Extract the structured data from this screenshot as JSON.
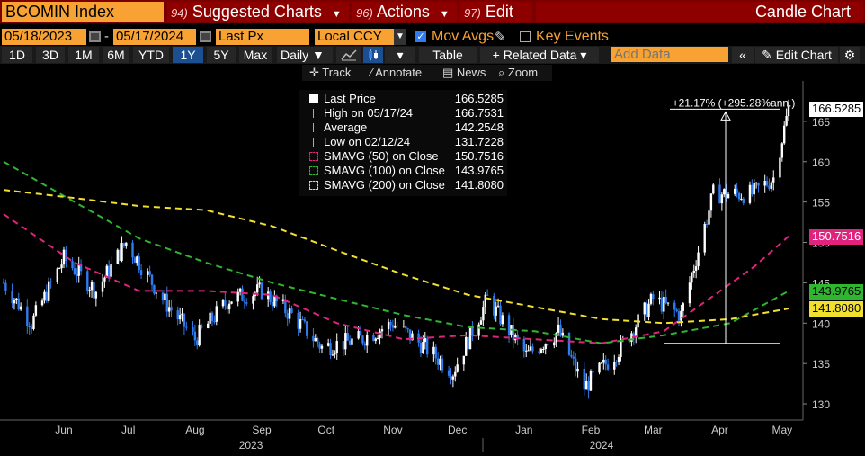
{
  "header": {
    "symbol": "BCOMIN Index",
    "menus": [
      {
        "num": "94)",
        "label": "Suggested Charts"
      },
      {
        "num": "96)",
        "label": "Actions"
      },
      {
        "num": "97)",
        "label": "Edit"
      }
    ],
    "title": "Candle Chart"
  },
  "controls": {
    "start_date": "05/18/2023",
    "end_date": "05/17/2024",
    "field": "Last Px",
    "currency": "Local CCY",
    "mov_avgs_label": "Mov Avgs",
    "mov_avgs_checked": true,
    "key_events_label": "Key Events",
    "key_events_checked": false,
    "date_sep": "-"
  },
  "toolbar": {
    "ranges": [
      "1D",
      "3D",
      "1M",
      "6M",
      "YTD",
      "1Y",
      "5Y",
      "Max"
    ],
    "selected_range": "1Y",
    "periodicity": "Daily",
    "table_label": "Table",
    "related_label": "+ Related Data",
    "add_data_placeholder": "Add Data",
    "edit_chart_label": "Edit Chart"
  },
  "subtools": {
    "track": "Track",
    "annotate": "Annotate",
    "news": "News",
    "zoom": "Zoom"
  },
  "legend": {
    "rows": [
      {
        "label": "Last Price",
        "value": "166.5285",
        "color": "#ffffff",
        "sym": "square"
      },
      {
        "label": "High on 05/17/24",
        "value": "166.7531",
        "color": "#aaaaaa",
        "sym": "high"
      },
      {
        "label": "Average",
        "value": "142.2548",
        "color": "#aaaaaa",
        "sym": "avg"
      },
      {
        "label": "Low on 02/12/24",
        "value": "131.7228",
        "color": "#aaaaaa",
        "sym": "low"
      },
      {
        "label": "SMAVG (50)  on Close",
        "value": "150.7516",
        "color": "#e0247e",
        "sym": "box"
      },
      {
        "label": "SMAVG (100)  on Close",
        "value": "143.9765",
        "color": "#2fb52f",
        "sym": "box"
      },
      {
        "label": "SMAVG (200)  on Close",
        "value": "141.8080",
        "color": "#f2e030",
        "sym": "box"
      }
    ]
  },
  "annotation": {
    "text": "+21.17% (+295.28%ann.)"
  },
  "chart_data": {
    "type": "candlestick",
    "title": "",
    "ylim": [
      128,
      170
    ],
    "yticks": [
      130,
      135,
      140,
      145,
      150,
      155,
      160,
      165
    ],
    "months": [
      "Jun",
      "Jul",
      "Aug",
      "Sep",
      "Oct",
      "Nov",
      "Dec",
      "Jan",
      "Feb",
      "Mar",
      "Apr",
      "May"
    ],
    "years": [
      "2023",
      "2024"
    ],
    "price_series": {
      "name": "Last Price",
      "color_up": "#ffffff",
      "color_down": "#2f7bf0",
      "x": [
        "2023-05-18",
        "2023-05-31",
        "2023-06-15",
        "2023-06-30",
        "2023-07-14",
        "2023-07-31",
        "2023-08-15",
        "2023-08-31",
        "2023-09-15",
        "2023-09-29",
        "2023-10-13",
        "2023-10-31",
        "2023-11-15",
        "2023-11-30",
        "2023-12-13",
        "2023-12-29",
        "2024-01-16",
        "2024-01-31",
        "2024-02-12",
        "2024-02-29",
        "2024-03-15",
        "2024-03-28",
        "2024-04-12",
        "2024-04-30",
        "2024-05-10",
        "2024-05-17"
      ],
      "y": [
        145,
        140,
        148,
        144,
        150,
        143,
        138,
        143,
        144,
        141,
        137,
        138,
        140,
        137,
        134,
        143,
        136,
        139,
        132,
        137,
        143,
        141,
        156,
        156,
        158,
        166.53
      ]
    },
    "series": [
      {
        "name": "SMAVG (50)",
        "color": "#e0247e",
        "x": [
          "2023-05-18",
          "2023-06-20",
          "2023-07-20",
          "2023-08-20",
          "2023-09-20",
          "2023-10-20",
          "2023-11-20",
          "2023-12-20",
          "2024-01-20",
          "2024-02-20",
          "2024-03-20",
          "2024-04-10",
          "2024-05-01",
          "2024-05-17"
        ],
        "y": [
          153.5,
          147.5,
          144,
          144,
          143.5,
          140,
          138,
          138.5,
          138,
          137.5,
          139,
          143,
          147,
          150.75
        ]
      },
      {
        "name": "SMAVG (100)",
        "color": "#2fb52f",
        "x": [
          "2023-05-18",
          "2023-06-20",
          "2023-07-20",
          "2023-08-20",
          "2023-09-20",
          "2023-10-20",
          "2023-11-20",
          "2023-12-20",
          "2024-01-20",
          "2024-02-20",
          "2024-03-20",
          "2024-04-20",
          "2024-05-17"
        ],
        "y": [
          160,
          155,
          150.5,
          147.5,
          145,
          143,
          141,
          139.5,
          139,
          137.5,
          138.5,
          140,
          143.98
        ]
      },
      {
        "name": "SMAVG (200)",
        "color": "#f2e030",
        "x": [
          "2023-05-18",
          "2023-06-20",
          "2023-07-20",
          "2023-08-20",
          "2023-09-20",
          "2023-10-20",
          "2023-11-20",
          "2023-12-20",
          "2024-01-20",
          "2024-02-20",
          "2024-03-20",
          "2024-04-20",
          "2024-05-17"
        ],
        "y": [
          156.5,
          155.5,
          154.5,
          154,
          152,
          149,
          146,
          143.5,
          142,
          140.5,
          140,
          140.5,
          141.81
        ]
      }
    ],
    "last_value_tags": [
      {
        "label": "166.5285",
        "value": 166.5285,
        "bg": "#ffffff",
        "fg": "#000000"
      },
      {
        "label": "150.7516",
        "value": 150.7516,
        "bg": "#e0247e",
        "fg": "#ffffff"
      },
      {
        "label": "143.9765",
        "value": 143.9765,
        "bg": "#2fb52f",
        "fg": "#000000"
      },
      {
        "label": "141.8080",
        "value": 141.808,
        "bg": "#f2e030",
        "fg": "#000000"
      }
    ],
    "measure": {
      "from_value": 137.5,
      "to_value": 166.5,
      "from_date": "2024-03-20",
      "to_date": "2024-05-17"
    }
  }
}
